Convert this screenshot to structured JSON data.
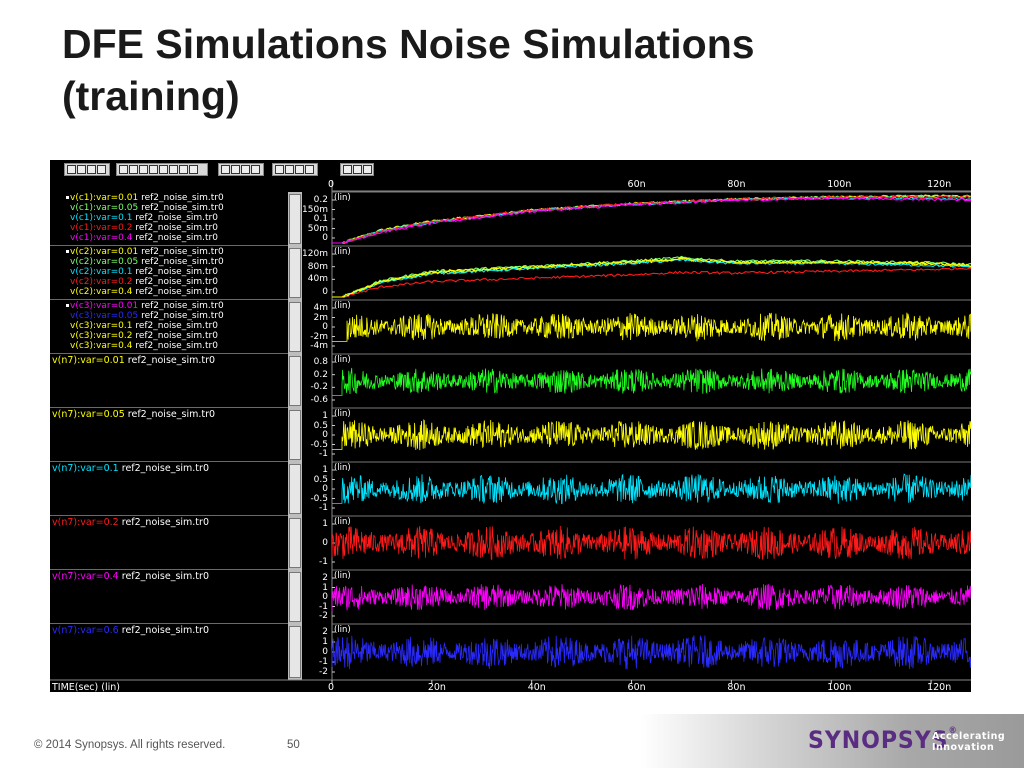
{
  "slide": {
    "title_line1": "DFE Simulations Noise Simulations",
    "title_line2": "(training)",
    "copyright": "© 2014 Synopsys. All rights reserved.",
    "page_number": "50",
    "logo_text": "SYNOPSYS",
    "logo_mark": "®",
    "tagline_line1": "Accelerating",
    "tagline_line2": "Innovation"
  },
  "waveform_viewer": {
    "x_axis_label": "TIME(sec) (lin)",
    "y_scale_label": "(lin)",
    "time_ticks_bottom": [
      "0",
      "20n",
      "40n",
      "60n",
      "80n",
      "100n",
      "120n"
    ],
    "time_ticks_top": [
      "0",
      "60n",
      "80n",
      "100n",
      "120n"
    ],
    "colors": {
      "yellow": "#ffff00",
      "light_green": "#7cff6a",
      "cyan": "#00e5ff",
      "red": "#ff1a1a",
      "magenta": "#ff00ff",
      "blue": "#2a2aff",
      "green": "#22ff22"
    },
    "panels": [
      {
        "y_ticks": [
          "0.2",
          "150m",
          "0.1",
          "50m",
          "0"
        ],
        "signals": [
          {
            "name": "v(c1):var=0.01",
            "file": "ref2_noise_sim.tr0",
            "color": "#ffff00"
          },
          {
            "name": "v(c1):var=0.05",
            "file": "ref2_noise_sim.tr0",
            "color": "#7cff6a"
          },
          {
            "name": "v(c1):var=0.1",
            "file": "ref2_noise_sim.tr0",
            "color": "#00e5ff"
          },
          {
            "name": "v(c1):var=0.2",
            "file": "ref2_noise_sim.tr0",
            "color": "#ff1a1a"
          },
          {
            "name": "v(c1):var=0.4",
            "file": "ref2_noise_sim.tr0",
            "color": "#ff00ff"
          }
        ]
      },
      {
        "y_ticks": [
          "120m",
          "80m",
          "40m",
          "0"
        ],
        "signals": [
          {
            "name": "v(c2):var=0.01",
            "file": "ref2_noise_sim.tr0",
            "color": "#ffff00"
          },
          {
            "name": "v(c2):var=0.05",
            "file": "ref2_noise_sim.tr0",
            "color": "#7cff6a"
          },
          {
            "name": "v(c2):var=0.1",
            "file": "ref2_noise_sim.tr0",
            "color": "#00e5ff"
          },
          {
            "name": "v(c2):var=0.2",
            "file": "ref2_noise_sim.tr0",
            "color": "#ff1a1a"
          },
          {
            "name": "v(c2):var=0.4",
            "file": "ref2_noise_sim.tr0",
            "color": "#ffff00"
          }
        ]
      },
      {
        "y_ticks": [
          "4m",
          "2m",
          "0",
          "-2m",
          "-4m"
        ],
        "signals": [
          {
            "name": "v(c3):var=0.01",
            "file": "ref2_noise_sim.tr0",
            "color": "#ff00ff"
          },
          {
            "name": "v(c3):var=0.05",
            "file": "ref2_noise_sim.tr0",
            "color": "#2a2aff"
          },
          {
            "name": "v(c3):var=0.1",
            "file": "ref2_noise_sim.tr0",
            "color": "#ffff00"
          },
          {
            "name": "v(c3):var=0.2",
            "file": "ref2_noise_sim.tr0",
            "color": "#ffff00"
          },
          {
            "name": "v(c3):var=0.4",
            "file": "ref2_noise_sim.tr0",
            "color": "#ffff00"
          }
        ]
      },
      {
        "y_ticks": [
          "0.8",
          "0.2",
          "-0.2",
          "-0.6"
        ],
        "signals": [
          {
            "name": "v(n7):var=0.01",
            "file": "ref2_noise_sim.tr0",
            "color": "#ffff00"
          }
        ]
      },
      {
        "y_ticks": [
          "1",
          "0.5",
          "0",
          "-0.5",
          "-1"
        ],
        "signals": [
          {
            "name": "v(n7):var=0.05",
            "file": "ref2_noise_sim.tr0",
            "color": "#ffff00"
          }
        ]
      },
      {
        "y_ticks": [
          "1",
          "0.5",
          "0",
          "-0.5",
          "-1"
        ],
        "signals": [
          {
            "name": "v(n7):var=0.1",
            "file": "ref2_noise_sim.tr0",
            "color": "#00e5ff"
          }
        ]
      },
      {
        "y_ticks": [
          "1",
          "0",
          "-1"
        ],
        "signals": [
          {
            "name": "v(n7):var=0.2",
            "file": "ref2_noise_sim.tr0",
            "color": "#ff1a1a"
          }
        ]
      },
      {
        "y_ticks": [
          "2",
          "1",
          "0",
          "-1",
          "-2"
        ],
        "signals": [
          {
            "name": "v(n7):var=0.4",
            "file": "ref2_noise_sim.tr0",
            "color": "#ff00ff"
          }
        ]
      },
      {
        "y_ticks": [
          "2",
          "1",
          "0",
          "-1",
          "-2"
        ],
        "signals": [
          {
            "name": "v(n7):var=0.6",
            "file": "ref2_noise_sim.tr0",
            "color": "#2a2aff"
          }
        ]
      }
    ]
  },
  "chart_data": {
    "type": "line",
    "title": "",
    "xlabel": "TIME(sec) (lin)",
    "xlim": [
      0,
      1.28e-07
    ],
    "x_ticks": [
      "0",
      "20n",
      "40n",
      "60n",
      "80n",
      "100n",
      "120n"
    ],
    "grid": false,
    "legend": "left",
    "series": [
      {
        "name": "v(c1):var=0.01",
        "color": "#ffff00",
        "ylim": [
          0,
          0.22
        ],
        "x": [
          0,
          2e-09,
          1e-08,
          2e-08,
          4e-08,
          6e-08,
          8e-08,
          1e-07,
          1.2e-07,
          1.28e-07
        ],
        "y": [
          0,
          0,
          0.06,
          0.1,
          0.15,
          0.18,
          0.2,
          0.21,
          0.215,
          0.215
        ]
      },
      {
        "name": "v(c1):var=0.05",
        "color": "#7cff6a",
        "ylim": [
          0,
          0.22
        ],
        "x": [
          0,
          2e-09,
          1e-08,
          2e-08,
          4e-08,
          6e-08,
          8e-08,
          1e-07,
          1.2e-07,
          1.28e-07
        ],
        "y": [
          0,
          0,
          0.058,
          0.1,
          0.15,
          0.18,
          0.2,
          0.21,
          0.215,
          0.212
        ]
      },
      {
        "name": "v(c1):var=0.1",
        "color": "#00e5ff",
        "ylim": [
          0,
          0.22
        ],
        "x": [
          0,
          2e-09,
          1e-08,
          2e-08,
          4e-08,
          6e-08,
          8e-08,
          1e-07,
          1.2e-07,
          1.28e-07
        ],
        "y": [
          0,
          0,
          0.055,
          0.095,
          0.148,
          0.178,
          0.198,
          0.208,
          0.205,
          0.2
        ]
      },
      {
        "name": "v(c1):var=0.2",
        "color": "#ff1a1a",
        "ylim": [
          0,
          0.22
        ],
        "x": [
          0,
          2e-09,
          1e-08,
          2e-08,
          4e-08,
          6e-08,
          8e-08,
          1e-07,
          1.2e-07,
          1.28e-07
        ],
        "y": [
          0,
          0,
          0.055,
          0.097,
          0.15,
          0.18,
          0.2,
          0.21,
          0.21,
          0.212
        ]
      },
      {
        "name": "v(c1):var=0.4",
        "color": "#ff00ff",
        "ylim": [
          0,
          0.22
        ],
        "x": [
          0,
          2e-09,
          1e-08,
          2e-08,
          4e-08,
          6e-08,
          8e-08,
          1e-07,
          1.2e-07,
          1.28e-07
        ],
        "y": [
          0,
          0,
          0.05,
          0.09,
          0.145,
          0.175,
          0.195,
          0.205,
          0.2,
          0.198
        ]
      },
      {
        "name": "v(c2):var=0.01",
        "color": "#ffff00",
        "ylim": [
          0,
          0.14
        ],
        "x": [
          0,
          2e-09,
          1e-08,
          2e-08,
          4e-08,
          6e-08,
          7e-08,
          8e-08,
          1e-07,
          1.2e-07,
          1.28e-07
        ],
        "y": [
          0,
          0,
          0.045,
          0.07,
          0.085,
          0.1,
          0.11,
          0.1,
          0.1,
          0.095,
          0.09
        ]
      },
      {
        "name": "v(c2):var=0.05",
        "color": "#7cff6a",
        "ylim": [
          0,
          0.14
        ],
        "x": [
          0,
          2e-09,
          1e-08,
          2e-08,
          4e-08,
          6e-08,
          7e-08,
          8e-08,
          1e-07,
          1.2e-07,
          1.28e-07
        ],
        "y": [
          0,
          0,
          0.048,
          0.075,
          0.09,
          0.105,
          0.115,
          0.105,
          0.105,
          0.1,
          0.095
        ]
      },
      {
        "name": "v(c2):var=0.1",
        "color": "#00e5ff",
        "ylim": [
          0,
          0.14
        ],
        "x": [
          0,
          2e-09,
          1e-08,
          2e-08,
          4e-08,
          6e-08,
          7e-08,
          8e-08,
          1e-07,
          1.2e-07,
          1.28e-07
        ],
        "y": [
          0,
          0,
          0.042,
          0.068,
          0.083,
          0.098,
          0.108,
          0.098,
          0.098,
          0.092,
          0.088
        ]
      },
      {
        "name": "v(c2):var=0.2",
        "color": "#ff1a1a",
        "ylim": [
          0,
          0.14
        ],
        "x": [
          0,
          2e-09,
          1e-08,
          2e-08,
          4e-08,
          6e-08,
          7e-08,
          8e-08,
          1e-07,
          1.2e-07,
          1.28e-07
        ],
        "y": [
          0,
          0,
          0.03,
          0.045,
          0.055,
          0.065,
          0.072,
          0.07,
          0.075,
          0.08,
          0.085
        ]
      },
      {
        "name": "v(c2):var=0.4",
        "color": "#ffff00",
        "ylim": [
          0,
          0.14
        ],
        "x": [
          0,
          2e-09,
          1e-08,
          2e-08,
          4e-08,
          6e-08,
          7e-08,
          8e-08,
          1e-07,
          1.2e-07,
          1.28e-07
        ],
        "y": [
          0,
          0,
          0.046,
          0.072,
          0.088,
          0.102,
          0.112,
          0.102,
          0.102,
          0.098,
          0.092
        ]
      },
      {
        "name": "v(c3):var=0.2",
        "color": "#ffff00",
        "ylim": [
          -0.005,
          0.005
        ],
        "start": 3e-09,
        "mean": 0,
        "amplitude": 0.003
      },
      {
        "name": "v(n7):var=0.01",
        "color": "#22ff22",
        "ylim": [
          -1,
          1
        ],
        "start": 2e-09,
        "mean": 0,
        "amplitude": 0.55
      },
      {
        "name": "v(n7):var=0.05",
        "color": "#ffff00",
        "ylim": [
          -1.1,
          1.1
        ],
        "start": 2e-09,
        "mean": 0,
        "amplitude": 0.7
      },
      {
        "name": "v(n7):var=0.1",
        "color": "#00e5ff",
        "ylim": [
          -1.1,
          1.1
        ],
        "start": 2e-09,
        "mean": 0,
        "amplitude": 0.7
      },
      {
        "name": "v(n7):var=0.2",
        "color": "#ff1a1a",
        "ylim": [
          -1.4,
          1.4
        ],
        "start": 0,
        "mean": 0,
        "amplitude": 1.0
      },
      {
        "name": "v(n7):var=0.4",
        "color": "#ff00ff",
        "ylim": [
          -2.3,
          2.3
        ],
        "start": 0,
        "mean": 0,
        "amplitude": 1.3
      },
      {
        "name": "v(n7):var=0.6",
        "color": "#2a2aff",
        "ylim": [
          -2.3,
          2.3
        ],
        "start": 0,
        "mean": 0,
        "amplitude": 1.6
      }
    ]
  }
}
